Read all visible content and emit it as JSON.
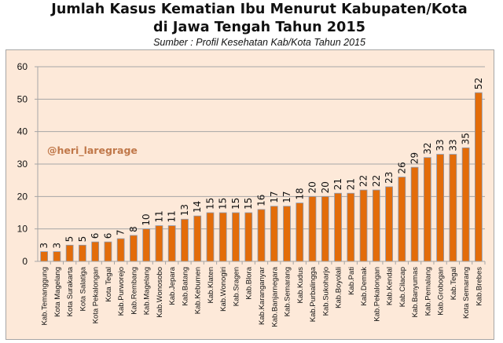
{
  "header": {
    "title_line1": "Jumlah Kasus Kematian Ibu Menurut Kabupaten/Kota",
    "title_line2": "di Jawa Tengah Tahun 2015",
    "subtitle": "Sumber : Profil Kesehatan Kab/Kota Tahun 2015"
  },
  "watermark": "@heri_laregrage",
  "colors": {
    "bar": "#e36c09",
    "bar_border": "#8a9bb5",
    "plot_background": "#fde9d9",
    "gridline": "#a6a6a6"
  },
  "chart_data": {
    "type": "bar",
    "title": "Jumlah Kasus Kematian Ibu Menurut Kabupaten/Kota di Jawa Tengah Tahun 2015",
    "subtitle": "Sumber : Profil Kesehatan Kab/Kota Tahun 2015",
    "xlabel": "",
    "ylabel": "",
    "ylim": [
      0,
      60
    ],
    "yticks": [
      0,
      10,
      20,
      30,
      40,
      50,
      60
    ],
    "grid": true,
    "legend": "none",
    "data_labels": true,
    "categories": [
      "Kab.Temanggung",
      "Kota Magelang",
      "Kota Surakarta",
      "Kota Salatiga",
      "Kota Pekalongan",
      "Kota Tegal",
      "Kab.Purworejo",
      "Kab.Rembang",
      "Kab.Magelang",
      "Kab.Wonosobo",
      "Kab.Jepara",
      "Kab.Batang",
      "Kab.Kebumen",
      "Kab.Klaten",
      "Kab.Wonogiri",
      "Kab.Sragen",
      "Kab.Blora",
      "Kab.Karanganyar",
      "Kab.Banjarnegara",
      "Kab.Semarang",
      "Kab.Kudus",
      "Kab.Purbalingga",
      "Kab.Sukoharjo",
      "Kab.Boyolali",
      "Kab.Pati",
      "Kab.Demak",
      "Kab.Pekalongan",
      "Kab.Kendal",
      "Kab.Cilacap",
      "Kab.Banyumas",
      "Kab.Pemalang",
      "Kab.Grobogan",
      "Kab.Tegal",
      "Kota Semarang",
      "Kab.Brebes"
    ],
    "values": [
      3,
      3,
      5,
      5,
      6,
      6,
      7,
      8,
      10,
      11,
      11,
      13,
      14,
      15,
      15,
      15,
      15,
      16,
      17,
      17,
      18,
      20,
      20,
      21,
      21,
      22,
      22,
      23,
      26,
      29,
      32,
      33,
      33,
      35,
      52
    ]
  }
}
